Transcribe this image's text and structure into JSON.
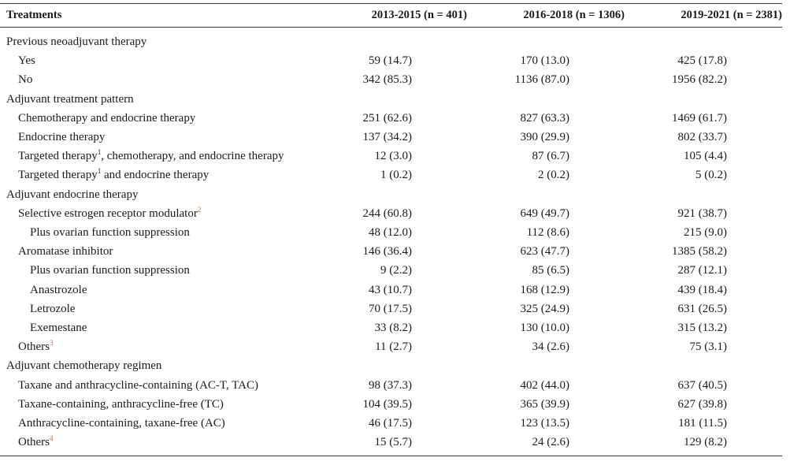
{
  "header": {
    "treatments": "Treatments",
    "col1": "2013-2015 (n = 401)",
    "col2": "2016-2018 (n = 1306)",
    "col3": "2019-2021 (n = 2381)"
  },
  "rows": [
    {
      "label": "Previous neoadjuvant therapy",
      "sup": "",
      "level": 0,
      "v1": "",
      "v2": "",
      "v3": ""
    },
    {
      "label": "Yes",
      "sup": "",
      "level": 1,
      "v1": "59 (14.7)",
      "v2": "170 (13.0)",
      "v3": "425 (17.8)"
    },
    {
      "label": "No",
      "sup": "",
      "level": 1,
      "v1": "342 (85.3)",
      "v2": "1136 (87.0)",
      "v3": "1956 (82.2)"
    },
    {
      "label": "Adjuvant treatment pattern",
      "sup": "",
      "level": 0,
      "v1": "",
      "v2": "",
      "v3": ""
    },
    {
      "label": "Chemotherapy and endocrine therapy",
      "sup": "",
      "level": 1,
      "v1": "251 (62.6)",
      "v2": "827 (63.3)",
      "v3": "1469 (61.7)"
    },
    {
      "label": "Endocrine therapy",
      "sup": "",
      "level": 1,
      "v1": "137 (34.2)",
      "v2": "390 (29.9)",
      "v3": "802 (33.7)"
    },
    {
      "label": "Targeted therapy",
      "sup": "1",
      "rest": ", chemotherapy, and endocrine therapy",
      "level": 1,
      "v1": "12 (3.0)",
      "v2": "87 (6.7)",
      "v3": "105 (4.4)"
    },
    {
      "label": "Targeted therapy",
      "sup": "1",
      "rest": " and endocrine therapy",
      "level": 1,
      "v1": "1 (0.2)",
      "v2": "2 (0.2)",
      "v3": "5 (0.2)"
    },
    {
      "label": "Adjuvant endocrine therapy",
      "sup": "",
      "level": 0,
      "v1": "",
      "v2": "",
      "v3": ""
    },
    {
      "label": "Selective estrogen receptor modulator",
      "sup": "2",
      "level": 1,
      "v1": "244 (60.8)",
      "v2": "649 (49.7)",
      "v3": "921 (38.7)"
    },
    {
      "label": "Plus ovarian function suppression",
      "sup": "",
      "level": 2,
      "v1": "48 (12.0)",
      "v2": "112 (8.6)",
      "v3": "215 (9.0)"
    },
    {
      "label": "Aromatase inhibitor",
      "sup": "",
      "level": 1,
      "v1": "146 (36.4)",
      "v2": "623 (47.7)",
      "v3": "1385 (58.2)"
    },
    {
      "label": "Plus ovarian function suppression",
      "sup": "",
      "level": 2,
      "v1": "9 (2.2)",
      "v2": "85 (6.5)",
      "v3": "287 (12.1)"
    },
    {
      "label": "Anastrozole",
      "sup": "",
      "level": 2,
      "v1": "43 (10.7)",
      "v2": "168 (12.9)",
      "v3": "439 (18.4)"
    },
    {
      "label": "Letrozole",
      "sup": "",
      "level": 2,
      "v1": "70 (17.5)",
      "v2": "325 (24.9)",
      "v3": "631 (26.5)"
    },
    {
      "label": "Exemestane",
      "sup": "",
      "level": 2,
      "v1": "33 (8.2)",
      "v2": "130 (10.0)",
      "v3": "315 (13.2)"
    },
    {
      "label": "Others",
      "sup": "3",
      "level": 1,
      "v1": "11 (2.7)",
      "v2": "34 (2.6)",
      "v3": "75 (3.1)"
    },
    {
      "label": "Adjuvant chemotherapy regimen",
      "sup": "",
      "level": 0,
      "v1": "",
      "v2": "",
      "v3": ""
    },
    {
      "label": "Taxane and anthracycline-containing (AC-T, TAC)",
      "sup": "",
      "level": 1,
      "v1": "98 (37.3)",
      "v2": "402 (44.0)",
      "v3": "637 (40.5)"
    },
    {
      "label": "Taxane-containing, anthracycline-free (TC)",
      "sup": "",
      "level": 1,
      "v1": "104 (39.5)",
      "v2": "365 (39.9)",
      "v3": "627 (39.8)"
    },
    {
      "label": "Anthracycline-containing, taxane-free (AC)",
      "sup": "",
      "level": 1,
      "v1": "46 (17.5)",
      "v2": "123 (13.5)",
      "v3": "181 (11.5)"
    },
    {
      "label": "Others",
      "sup": "4",
      "level": 1,
      "v1": "15 (5.7)",
      "v2": "24 (2.6)",
      "v3": "129 (8.2)"
    }
  ]
}
